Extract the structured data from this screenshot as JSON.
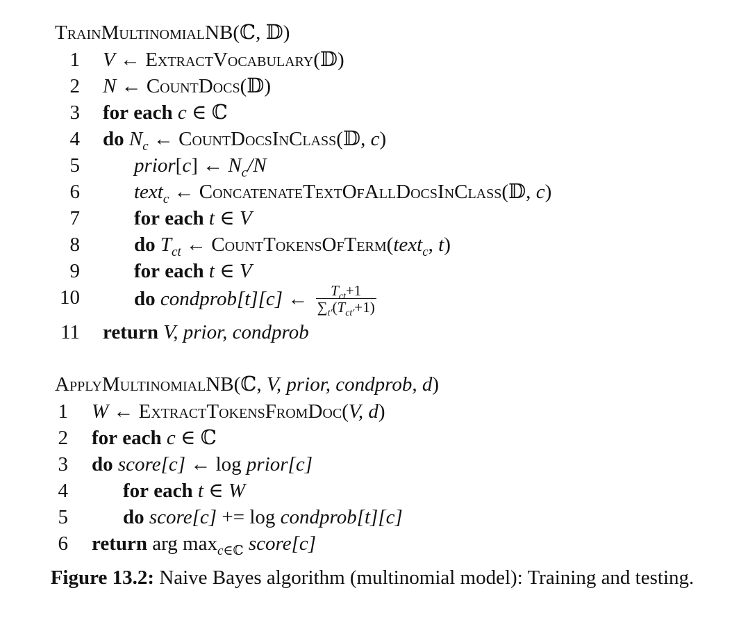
{
  "train": {
    "name": "TrainMultinomialNB",
    "args": "(ℂ, 𝔻)",
    "line_numbers": [
      "1",
      "2",
      "3",
      "4",
      "5",
      "6",
      "7",
      "8",
      "9",
      "10",
      "11"
    ],
    "l1": {
      "v": "V",
      "arrow": "←",
      "fn": "ExtractVocabulary",
      "args": "(𝔻)"
    },
    "l2": {
      "v": "N",
      "arrow": "←",
      "fn": "CountDocs",
      "args": "(𝔻)"
    },
    "l3": {
      "kw1": "for",
      "kw2": "each",
      "var": "c",
      "in": "∈",
      "set": "ℂ"
    },
    "l4": {
      "kw": "do",
      "v": "N",
      "sub": "c",
      "arrow": "←",
      "fn": "CountDocsInClass",
      "args_pre": "(𝔻, ",
      "arg_var": "c",
      "args_post": ")"
    },
    "l5": {
      "lhs": "prior",
      "idx_open": "[",
      "idx": "c",
      "idx_close": "]",
      "arrow": "←",
      "rhs_v": "N",
      "rhs_sub": "c",
      "rhs_tail": "/N"
    },
    "l6": {
      "v": "text",
      "sub": "c",
      "arrow": "←",
      "fn": "ConcatenateTextOfAllDocsInClass",
      "args_pre": "(𝔻, ",
      "arg_var": "c",
      "args_post": ")"
    },
    "l7": {
      "kw1": "for",
      "kw2": "each",
      "var": "t",
      "in": "∈",
      "set": "V"
    },
    "l8": {
      "kw": "do",
      "v": "T",
      "sub": "ct",
      "arrow": "←",
      "fn": "CountTokensOfTerm",
      "args_pre": "(",
      "arg_v": "text",
      "arg_sub": "c",
      "args_mid": ", ",
      "arg_t": "t",
      "args_post": ")"
    },
    "l9": {
      "kw1": "for",
      "kw2": "each",
      "var": "t",
      "in": "∈",
      "set": "V"
    },
    "l10": {
      "kw": "do",
      "lhs": "condprob",
      "idx1": "[t]",
      "idx2": "[c]",
      "arrow": "←",
      "num_v": "T",
      "num_sub": "ct",
      "num_tail": "+1",
      "den_sum": "∑",
      "den_sum_sub": "t′",
      "den_open": "(",
      "den_v": "T",
      "den_sub": "ct′",
      "den_tail": "+1)"
    },
    "l11": {
      "kw": "return",
      "rest": "V, prior, condprob"
    }
  },
  "apply": {
    "name": "ApplyMultinomialNB",
    "args_pre": "(ℂ, ",
    "args_it": "V, prior, condprob, d",
    "args_post": ")",
    "line_numbers": [
      "1",
      "2",
      "3",
      "4",
      "5",
      "6"
    ],
    "l1": {
      "v": "W",
      "arrow": "←",
      "fn": "ExtractTokensFromDoc",
      "args_pre": "(",
      "args_it": "V, d",
      "args_post": ")"
    },
    "l2": {
      "kw1": "for",
      "kw2": "each",
      "var": "c",
      "in": "∈",
      "set": "ℂ"
    },
    "l3": {
      "kw": "do",
      "lhs": "score",
      "idx": "[c]",
      "arrow": "←",
      "log": "log",
      "rhs": "prior",
      "rhs_idx": "[c]"
    },
    "l4": {
      "kw1": "for",
      "kw2": "each",
      "var": "t",
      "in": "∈",
      "set": "W"
    },
    "l5": {
      "kw": "do",
      "lhs": "score",
      "idx": "[c]",
      "op": "+=",
      "log": "log",
      "rhs": "condprob",
      "rhs_idx1": "[t]",
      "rhs_idx2": "[c]"
    },
    "l6": {
      "kw": "return",
      "argmax": "arg max",
      "sub_v": "c",
      "sub_in": "∈",
      "sub_set": "ℂ",
      "rhs": "score",
      "rhs_idx": "[c]"
    }
  },
  "caption": {
    "label": "Figure 13.2:",
    "text": " Naive Bayes algorithm (multinomial model): Training and testing."
  }
}
